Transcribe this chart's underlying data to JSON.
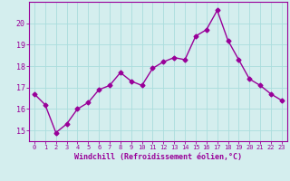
{
  "x": [
    0,
    1,
    2,
    3,
    4,
    5,
    6,
    7,
    8,
    9,
    10,
    11,
    12,
    13,
    14,
    15,
    16,
    17,
    18,
    19,
    20,
    21,
    22,
    23
  ],
  "y": [
    16.7,
    16.2,
    14.9,
    15.3,
    16.0,
    16.3,
    16.9,
    17.1,
    17.7,
    17.3,
    17.1,
    17.9,
    18.2,
    18.4,
    18.3,
    19.4,
    19.7,
    20.6,
    19.2,
    18.3,
    17.4,
    17.1,
    16.7,
    16.4
  ],
  "line_color": "#990099",
  "marker": "D",
  "marker_size": 2.5,
  "bg_color": "#d4eeee",
  "grid_color": "#aadddd",
  "xlabel": "Windchill (Refroidissement éolien,°C)",
  "xlabel_color": "#990099",
  "tick_color": "#990099",
  "ylim": [
    14.5,
    21.0
  ],
  "xlim": [
    -0.5,
    23.5
  ],
  "yticks": [
    15,
    16,
    17,
    18,
    19,
    20
  ],
  "xticks": [
    0,
    1,
    2,
    3,
    4,
    5,
    6,
    7,
    8,
    9,
    10,
    11,
    12,
    13,
    14,
    15,
    16,
    17,
    18,
    19,
    20,
    21,
    22,
    23
  ],
  "spine_color": "#990099",
  "line_width": 1.0
}
